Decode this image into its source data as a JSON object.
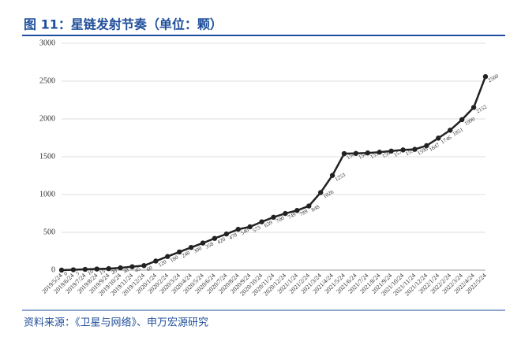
{
  "chart_data": {
    "type": "line",
    "title": "图 11：星链发射节奏（单位：颗）",
    "source": "资料来源：《卫星与网络》、申万宏源研究",
    "categories": [
      "2019/5/24",
      "2019/6/24",
      "2019/7/24",
      "2019/8/24",
      "2019/9/24",
      "2019/10/24",
      "2019/11/24",
      "2019/12/24",
      "2020/1/24",
      "2020/2/24",
      "2020/3/24",
      "2020/4/24",
      "2020/5/24",
      "2020/6/24",
      "2020/7/24",
      "2020/8/24",
      "2020/9/24",
      "2020/10/24",
      "2020/11/24",
      "2020/12/24",
      "2021/1/24",
      "2021/2/24",
      "2021/3/24",
      "2021/4/24",
      "2021/5/24",
      "2021/6/24",
      "2021/7/24",
      "2021/8/24",
      "2021/9/24",
      "2021/10/24",
      "2021/11/24",
      "2021/12/24",
      "2022/1/24",
      "2022/2/24",
      "2022/3/24",
      "2022/4/24",
      "2022/5/24"
    ],
    "series": [
      {
        "name": "星链",
        "color": "#222222",
        "values": [
          0,
          5,
          10,
          15,
          20,
          30,
          45,
          60,
          120,
          180,
          240,
          300,
          358,
          420,
          478,
          540,
          573,
          639,
          700,
          749,
          789,
          848,
          1026,
          1253,
          1541,
          1544,
          1550,
          1560,
          1575,
          1590,
          1598,
          1647,
          1746,
          1851,
          1990,
          2152,
          2560
        ]
      }
    ],
    "ylim": [
      0,
      3000
    ],
    "yticks": [
      0,
      500,
      1000,
      1500,
      2000,
      2500,
      3000
    ],
    "grid": true
  }
}
